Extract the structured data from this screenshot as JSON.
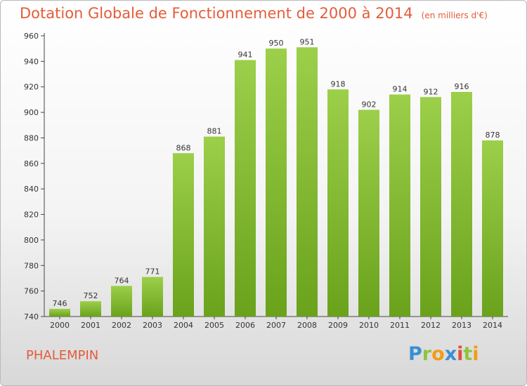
{
  "header": {
    "title": "Dotation Globale de Fonctionnement de 2000 à 2014",
    "unit": "(en milliers d'€)"
  },
  "footer": {
    "commune": "PHALEMPIN",
    "logo_letters": [
      "P",
      "r",
      "o",
      "x",
      "i",
      "t",
      "i"
    ],
    "logo_colors": [
      "#3a8fd1",
      "#8cc63f",
      "#f39c12",
      "#3a8fd1",
      "#e74c3c",
      "#8cc63f",
      "#f39c12"
    ]
  },
  "chart_data": {
    "type": "bar",
    "title": "Dotation Globale de Fonctionnement de 2000 à 2014",
    "xlabel": "",
    "ylabel": "",
    "categories": [
      "2000",
      "2001",
      "2002",
      "2003",
      "2004",
      "2005",
      "2006",
      "2007",
      "2008",
      "2009",
      "2010",
      "2011",
      "2012",
      "2013",
      "2014"
    ],
    "values": [
      746,
      752,
      764,
      771,
      868,
      881,
      941,
      950,
      951,
      918,
      902,
      914,
      912,
      916,
      878
    ],
    "ylim": [
      740,
      960
    ],
    "yticks": [
      740,
      760,
      780,
      800,
      820,
      840,
      860,
      880,
      900,
      920,
      940,
      960
    ],
    "grid": false,
    "bar_color_top": "#9ccf4a",
    "bar_color_bottom": "#6aa21c",
    "title_color": "#e45c3a"
  }
}
